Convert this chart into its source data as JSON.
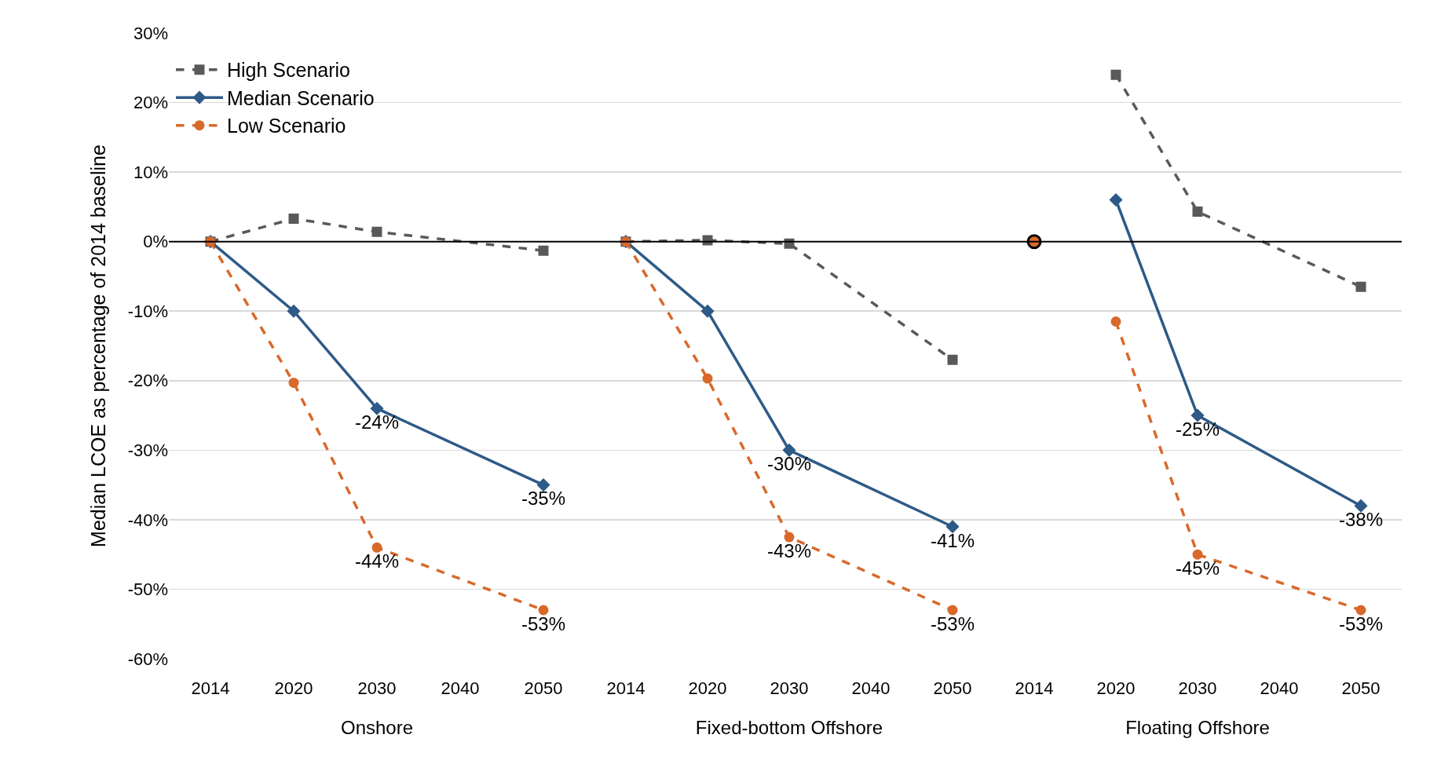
{
  "chart_data": [
    {
      "type": "line",
      "xlabel": "Onshore",
      "ylabel": "Median LCOE as percentage of 2014 baseline",
      "categories": [
        "2014",
        "2020",
        "2030",
        "2040",
        "2050"
      ],
      "ylim": [
        -60,
        30
      ],
      "yticks": [
        {
          "value": 30,
          "label": "30%"
        },
        {
          "value": 20,
          "label": "20%"
        },
        {
          "value": 10,
          "label": "10%"
        },
        {
          "value": 0,
          "label": "0%"
        },
        {
          "value": -10,
          "label": "-10%"
        },
        {
          "value": -20,
          "label": "-20%"
        },
        {
          "value": -30,
          "label": "-30%"
        },
        {
          "value": -40,
          "label": "-40%"
        },
        {
          "value": -50,
          "label": "-50%"
        },
        {
          "value": -60,
          "label": "-60%"
        }
      ],
      "grid": "y",
      "legend": "top left",
      "ref_lines": [
        {
          "axis": "y",
          "value": 0,
          "color": "#000000"
        }
      ],
      "series": [
        {
          "name": "High Scenario",
          "color": "#595959",
          "marker": "square",
          "line_style": "dashed",
          "values": [
            0,
            3.3,
            1.4,
            null,
            -1.3
          ]
        },
        {
          "name": "Median Scenario",
          "color": "#2e5a87",
          "marker": "diamond",
          "line_style": "solid",
          "values": [
            0,
            -10,
            -24,
            null,
            -35
          ],
          "value_labels": [
            null,
            null,
            "-24%",
            null,
            "-35%"
          ]
        },
        {
          "name": "Low Scenario",
          "color": "#d9692a",
          "marker": "circle",
          "line_style": "dashed",
          "values": [
            0,
            -20.3,
            -44,
            null,
            -53
          ],
          "value_labels": [
            null,
            null,
            "-44%",
            null,
            "-53%"
          ]
        }
      ]
    },
    {
      "type": "line",
      "xlabel": "Fixed-bottom Offshore",
      "categories": [
        "2014",
        "2020",
        "2030",
        "2040",
        "2050"
      ],
      "ylim": [
        -60,
        30
      ],
      "yticks": [
        {
          "value": 30,
          "label": null
        },
        {
          "value": 20,
          "label": null
        },
        {
          "value": 10,
          "label": null
        },
        {
          "value": 0,
          "label": null
        },
        {
          "value": -10,
          "label": null
        },
        {
          "value": -20,
          "label": null
        },
        {
          "value": -30,
          "label": null
        },
        {
          "value": -40,
          "label": null
        },
        {
          "value": -50,
          "label": null
        },
        {
          "value": -60,
          "label": null
        }
      ],
      "tick_labels": "x",
      "grid": "y",
      "ref_lines": [
        {
          "axis": "y",
          "value": 0,
          "color": "#000000"
        }
      ],
      "series": [
        {
          "color": "#595959",
          "marker": "square",
          "line_style": "dashed",
          "values": [
            0,
            0.2,
            -0.3,
            null,
            -17
          ]
        },
        {
          "color": "#2e5a87",
          "marker": "diamond",
          "line_style": "solid",
          "values": [
            0,
            -10,
            -30,
            null,
            -41
          ],
          "value_labels": [
            null,
            null,
            "-30%",
            null,
            "-41%"
          ]
        },
        {
          "color": "#d9692a",
          "marker": "circle",
          "line_style": "dashed",
          "values": [
            0,
            -19.7,
            -42.5,
            null,
            -53
          ],
          "value_labels": [
            null,
            null,
            "-43%",
            null,
            "-53%"
          ]
        }
      ]
    },
    {
      "type": "line",
      "xlabel": "Floating Offshore",
      "categories": [
        "2014",
        "2020",
        "2030",
        "2040",
        "2050"
      ],
      "ylim": [
        -60,
        30
      ],
      "yticks": [
        {
          "value": 30,
          "label": null
        },
        {
          "value": 20,
          "label": null
        },
        {
          "value": 10,
          "label": null
        },
        {
          "value": 0,
          "label": null
        },
        {
          "value": -10,
          "label": null
        },
        {
          "value": -20,
          "label": null
        },
        {
          "value": -30,
          "label": null
        },
        {
          "value": -40,
          "label": null
        },
        {
          "value": -50,
          "label": null
        },
        {
          "value": -60,
          "label": null
        }
      ],
      "tick_labels": "x",
      "grid": "y",
      "ref_lines": [
        {
          "axis": "y",
          "value": 0,
          "color": "#000000"
        }
      ],
      "series": [
        {
          "color": "#595959",
          "marker": "square",
          "line_style": "dashed",
          "values": [
            null,
            24,
            4.3,
            null,
            -6.5
          ]
        },
        {
          "color": "#2e5a87",
          "marker": "diamond",
          "line_style": "solid",
          "values": [
            null,
            6,
            -25,
            null,
            -38
          ],
          "value_labels": [
            null,
            null,
            "-25%",
            null,
            "-38%"
          ]
        },
        {
          "color": "#d9692a",
          "marker": "circle",
          "line_style": "dashed",
          "values": [
            null,
            -11.5,
            -45,
            null,
            -53
          ],
          "value_labels": [
            null,
            null,
            "-45%",
            null,
            "-53%"
          ]
        },
        {
          "type": "scatter",
          "color": "#000000",
          "marker": "circle",
          "values": [
            0,
            null,
            null,
            null,
            null
          ]
        }
      ]
    }
  ]
}
